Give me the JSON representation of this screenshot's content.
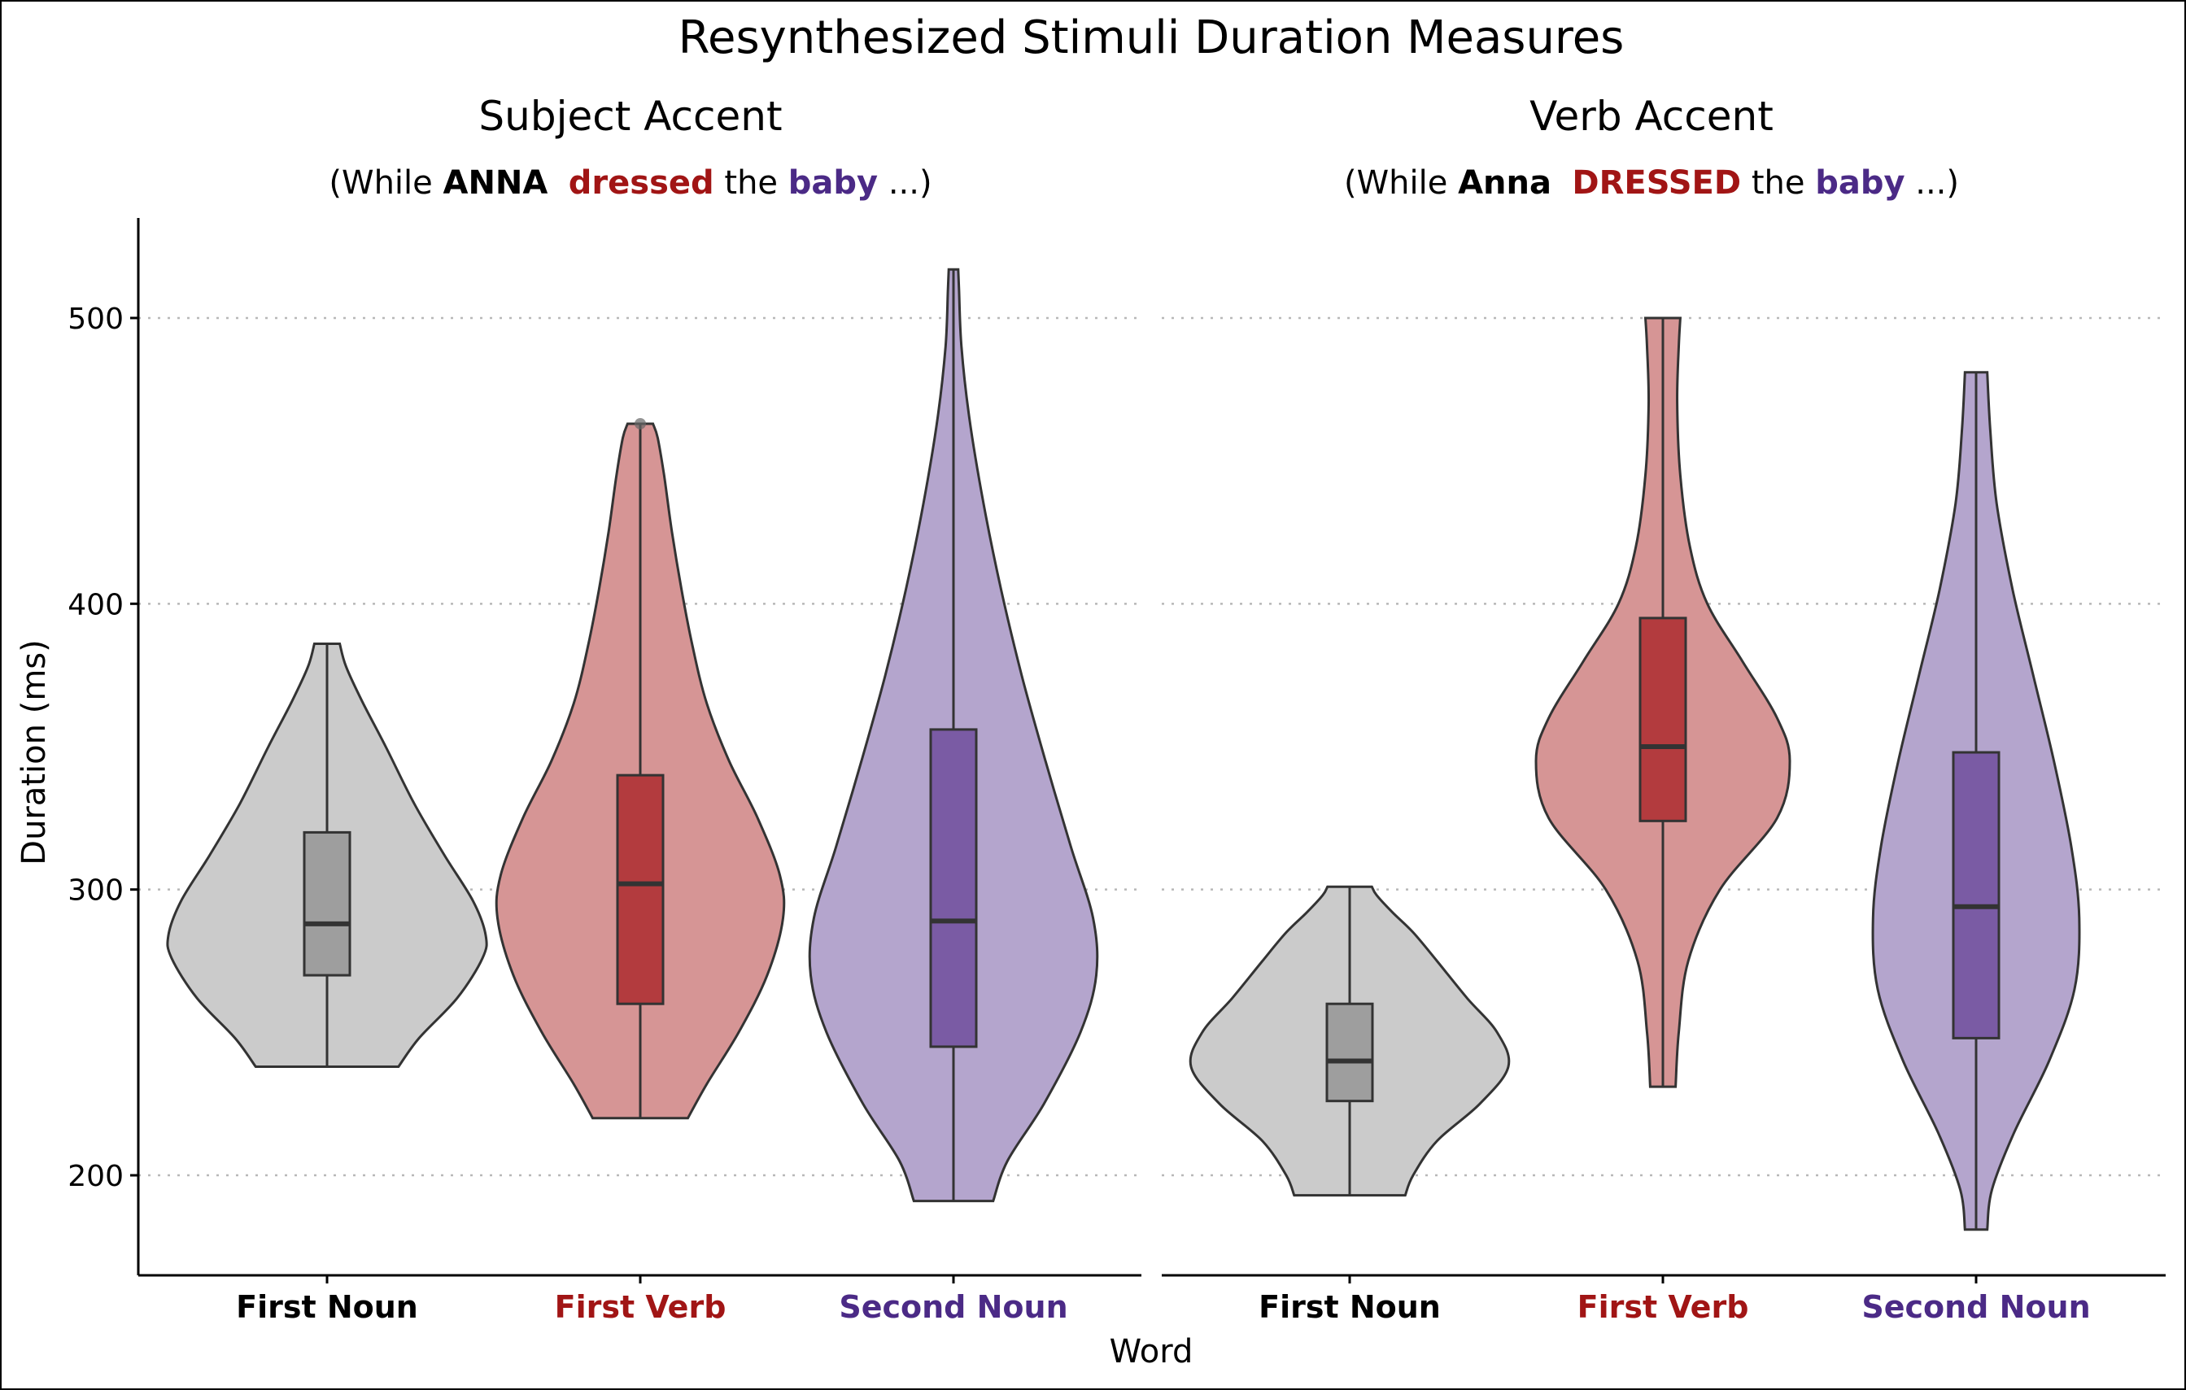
{
  "colors": {
    "first_noun": "#000000",
    "first_verb": "#a11515",
    "second_noun": "#4b2a86",
    "violin_fill": [
      "#cbcbcb",
      "#d69595",
      "#b4a5cd"
    ],
    "box_fill": [
      "#9e9e9e",
      "#b33b3e",
      "#7a5ba4"
    ]
  },
  "chart_data": {
    "type": "violin",
    "title": "Resynthesized Stimuli Duration Measures",
    "xlabel": "Word",
    "ylabel": "Duration (ms)",
    "ylim": [
      165,
      535
    ],
    "yticks": [
      200,
      300,
      400,
      500
    ],
    "grid": "horizontal dotted",
    "categories": [
      "First Noun",
      "First Verb",
      "Second Noun"
    ],
    "panels": [
      {
        "title": "Subject Accent",
        "subtitle": {
          "open": "(While ",
          "noun1": "ANNA",
          "verb": "dressed",
          "the": "the",
          "noun2": "baby",
          "close": "...)"
        },
        "series": [
          {
            "category": "First Noun",
            "min": 238,
            "q1": 270,
            "median": 288,
            "q3": 320,
            "max": 386,
            "density": [
              [
                238,
                0.45
              ],
              [
                248,
                0.58
              ],
              [
                262,
                0.82
              ],
              [
                276,
                0.98
              ],
              [
                284,
                1.0
              ],
              [
                296,
                0.92
              ],
              [
                312,
                0.74
              ],
              [
                330,
                0.55
              ],
              [
                350,
                0.37
              ],
              [
                366,
                0.22
              ],
              [
                378,
                0.12
              ],
              [
                386,
                0.08
              ]
            ]
          },
          {
            "category": "First Verb",
            "min": 220,
            "q1": 260,
            "median": 302,
            "q3": 340,
            "max": 463,
            "outliers": [
              463
            ],
            "density": [
              [
                220,
                0.3
              ],
              [
                232,
                0.42
              ],
              [
                250,
                0.62
              ],
              [
                270,
                0.8
              ],
              [
                290,
                0.9
              ],
              [
                305,
                0.88
              ],
              [
                325,
                0.74
              ],
              [
                345,
                0.56
              ],
              [
                365,
                0.42
              ],
              [
                385,
                0.33
              ],
              [
                405,
                0.26
              ],
              [
                425,
                0.2
              ],
              [
                445,
                0.15
              ],
              [
                458,
                0.11
              ],
              [
                463,
                0.08
              ]
            ]
          },
          {
            "category": "Second Noun",
            "min": 191,
            "q1": 245,
            "median": 289,
            "q3": 356,
            "max": 517,
            "density": [
              [
                191,
                0.25
              ],
              [
                205,
                0.34
              ],
              [
                225,
                0.57
              ],
              [
                250,
                0.8
              ],
              [
                270,
                0.9
              ],
              [
                290,
                0.88
              ],
              [
                315,
                0.74
              ],
              [
                345,
                0.58
              ],
              [
                375,
                0.43
              ],
              [
                405,
                0.3
              ],
              [
                435,
                0.19
              ],
              [
                465,
                0.1
              ],
              [
                490,
                0.05
              ],
              [
                510,
                0.035
              ],
              [
                517,
                0.03
              ]
            ]
          }
        ]
      },
      {
        "title": "Verb Accent",
        "subtitle": {
          "open": "(While ",
          "noun1": "Anna",
          "verb": "DRESSED",
          "the": "the",
          "noun2": "baby",
          "close": "...)"
        },
        "series": [
          {
            "category": "First Noun",
            "min": 193,
            "q1": 226,
            "median": 240,
            "q3": 260,
            "max": 301,
            "density": [
              [
                193,
                0.35
              ],
              [
                200,
                0.4
              ],
              [
                212,
                0.55
              ],
              [
                225,
                0.82
              ],
              [
                238,
                1.0
              ],
              [
                250,
                0.93
              ],
              [
                262,
                0.74
              ],
              [
                275,
                0.55
              ],
              [
                285,
                0.4
              ],
              [
                292,
                0.27
              ],
              [
                298,
                0.17
              ],
              [
                301,
                0.14
              ]
            ]
          },
          {
            "category": "First Verb",
            "min": 231,
            "q1": 324,
            "median": 350,
            "q3": 395,
            "max": 500,
            "density": [
              [
                231,
                0.08
              ],
              [
                250,
                0.1
              ],
              [
                275,
                0.16
              ],
              [
                300,
                0.36
              ],
              [
                325,
                0.72
              ],
              [
                345,
                0.8
              ],
              [
                360,
                0.72
              ],
              [
                380,
                0.5
              ],
              [
                400,
                0.28
              ],
              [
                420,
                0.17
              ],
              [
                445,
                0.11
              ],
              [
                470,
                0.09
              ],
              [
                490,
                0.1
              ],
              [
                500,
                0.11
              ]
            ]
          },
          {
            "category": "Second Noun",
            "min": 181,
            "q1": 248,
            "median": 294,
            "q3": 348,
            "max": 481,
            "density": [
              [
                181,
                0.07
              ],
              [
                195,
                0.1
              ],
              [
                215,
                0.24
              ],
              [
                240,
                0.46
              ],
              [
                265,
                0.62
              ],
              [
                290,
                0.65
              ],
              [
                315,
                0.6
              ],
              [
                345,
                0.49
              ],
              [
                375,
                0.36
              ],
              [
                405,
                0.23
              ],
              [
                435,
                0.13
              ],
              [
                460,
                0.09
              ],
              [
                481,
                0.07
              ]
            ]
          }
        ]
      }
    ]
  }
}
